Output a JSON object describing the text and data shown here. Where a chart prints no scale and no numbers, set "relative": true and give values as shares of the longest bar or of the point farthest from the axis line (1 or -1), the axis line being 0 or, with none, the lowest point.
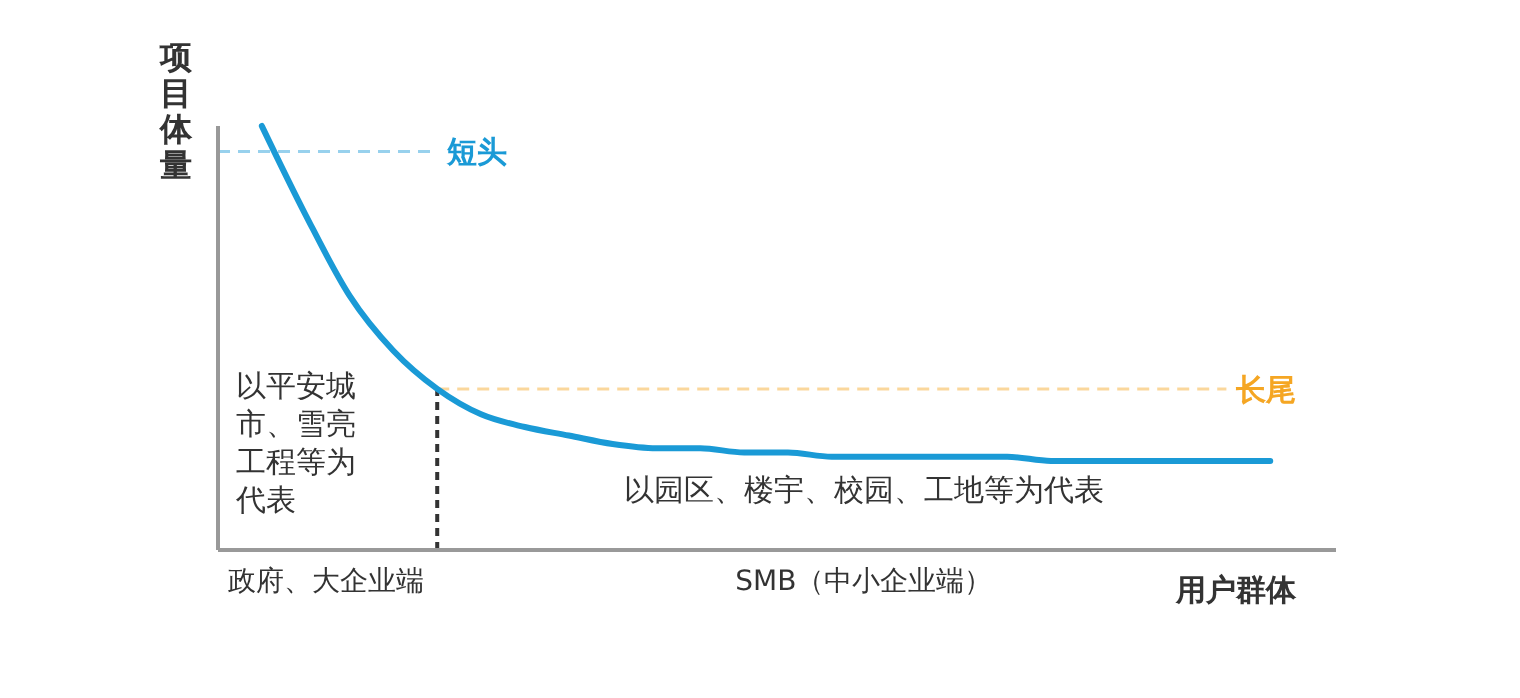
{
  "chart_data": {
    "type": "line",
    "relative": true,
    "ylabel": "项目体量",
    "xlabel": "用户群体",
    "categories": [
      null,
      null,
      null,
      null,
      null,
      null,
      null,
      null,
      null,
      null,
      null,
      null,
      null,
      null,
      null,
      null,
      null,
      null,
      null,
      null,
      null,
      null,
      null,
      null
    ],
    "series": [
      {
        "color": "#1a9ad6",
        "values": [
          1,
          0.79,
          0.6,
          0.47,
          0.38,
          0.32,
          0.29,
          0.27,
          0.25,
          0.24,
          0.24,
          0.23,
          0.23,
          0.22,
          0.22,
          0.22,
          0.22,
          0.22,
          0.21,
          0.21,
          0.21,
          0.21,
          0.21,
          0.21
        ]
      }
    ],
    "ref_lines": [
      {
        "axis": "y",
        "value": 0.94,
        "label": "短头",
        "color": "#1a9ad6",
        "line_style": "dashed"
      },
      {
        "axis": "y",
        "value": 0.38,
        "label": "长尾",
        "color": "#f5a623",
        "line_style": "dashed"
      }
    ],
    "annotations": [
      "以平安城市、雪亮工程等为代表",
      "以园区、楼宇、校园、工地等为代表",
      "政府、大企业端",
      "SMB（中小企业端）"
    ],
    "grid": false,
    "legend": false
  }
}
